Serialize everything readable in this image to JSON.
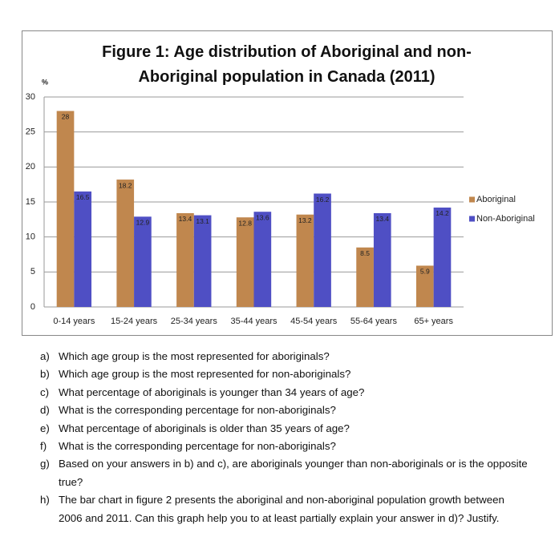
{
  "chart_data": {
    "type": "bar",
    "title": "Figure 1: Age distribution of Aboriginal and non-Aboriginal population in Canada (2011)",
    "y_label": "%",
    "categories": [
      "0-14 years",
      "15-24 years",
      "25-34 years",
      "35-44 years",
      "45-54 years",
      "55-64 years",
      "65+ years"
    ],
    "series": [
      {
        "name": "Aboriginal",
        "color": "#c0874e",
        "values": [
          28,
          18.2,
          13.4,
          12.8,
          13.2,
          8.5,
          5.9
        ]
      },
      {
        "name": "Non-Aboriginal",
        "color": "#4f4fc4",
        "values": [
          16.5,
          12.9,
          13.1,
          13.6,
          16.2,
          13.4,
          14.2
        ]
      }
    ],
    "ylim": [
      0,
      30
    ],
    "yticks": [
      0,
      5,
      10,
      15,
      20,
      25,
      30
    ],
    "grid": true,
    "legend": "right"
  },
  "questions": [
    {
      "label": "a)",
      "text": "Which age group is the most represented for aboriginals?"
    },
    {
      "label": "b)",
      "text": "Which age group is the most represented for non-aboriginals?"
    },
    {
      "label": "c)",
      "text": "What percentage of aboriginals is younger than 34 years of age?"
    },
    {
      "label": "d)",
      "text": "What is the corresponding percentage for non-aboriginals?"
    },
    {
      "label": "e)",
      "text": "What percentage of aboriginals is older than 35 years of age?"
    },
    {
      "label": "f)",
      "text": "What is the corresponding percentage for non-aboriginals?"
    },
    {
      "label": "g)",
      "text": "Based on your answers in b) and c), are aboriginals younger than non-aboriginals or is the opposite true?"
    },
    {
      "label": "h)",
      "text": "The bar chart in figure 2 presents the aboriginal and non-aboriginal population growth between 2006 and 2011. Can this graph help you to at least partially explain your answer in d)? Justify."
    }
  ]
}
